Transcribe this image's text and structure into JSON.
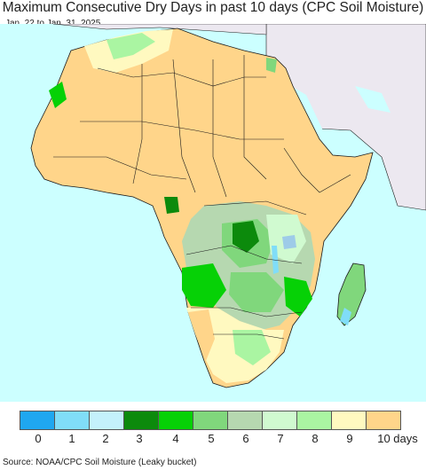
{
  "title": "Maximum Consecutive Dry Days in past 10 days (CPC Soil Moisture)",
  "subtitle": "Jan. 22 to Jan. 31, 2025",
  "source": "Source: NOAA/CPC Soil Moisture (Leaky bucket)",
  "colors": {
    "ocean": "#ccffff",
    "non_africa_land": "#ece8f0",
    "border": "#1a1a1a",
    "lakes": "#9ecbe8"
  },
  "legend": {
    "ticks": [
      "0",
      "1",
      "2",
      "3",
      "4",
      "5",
      "6",
      "7",
      "8",
      "9",
      "10 days"
    ],
    "colors": [
      "#1fa7f0",
      "#80ddf8",
      "#c4f1fb",
      "#0c8a0c",
      "#06d106",
      "#80d77c",
      "#b6d8b0",
      "#d0fad0",
      "#aaf5a2",
      "#fff9c0",
      "#ffd58a"
    ]
  }
}
